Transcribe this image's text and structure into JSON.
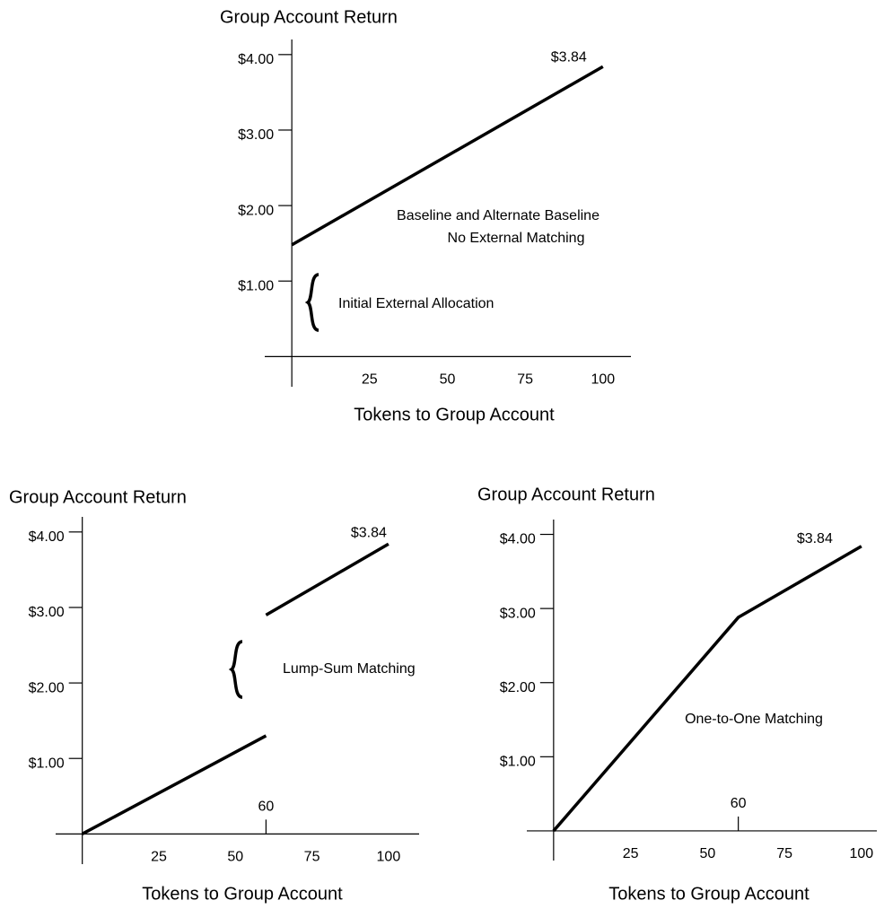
{
  "chart_data": [
    {
      "type": "line",
      "title": "Group Account Return",
      "xlabel": "Tokens to Group Account",
      "x": [
        0,
        100
      ],
      "values": [
        1.48,
        3.84
      ],
      "value_labels": [
        null,
        "$3.84"
      ],
      "color": "#000000",
      "xlim": [
        -8.7,
        109
      ],
      "ylim": [
        -0.4,
        4.2
      ],
      "xticks": [
        25,
        50,
        75,
        100
      ],
      "yticks": [
        {
          "value": 1,
          "label": "$1.00"
        },
        {
          "value": 2,
          "label": "$2.00"
        },
        {
          "value": 3,
          "label": "$3.00"
        },
        {
          "value": 4,
          "label": "$4.00"
        }
      ],
      "annotations": [
        "Baseline and Alternate Baseline",
        "No External Matching",
        "Initial External Allocation"
      ],
      "grid": false
    },
    {
      "type": "line",
      "title": "Group Account Return",
      "xlabel": "Tokens to Group Account",
      "x": [
        0,
        60,
        60,
        60,
        100
      ],
      "values": [
        0,
        1.3,
        null,
        2.9,
        3.84
      ],
      "value_labels": [
        null,
        null,
        null,
        null,
        "$3.84"
      ],
      "color": "#000000",
      "xlim": [
        -8.7,
        110
      ],
      "ylim": [
        -0.4,
        4.2
      ],
      "xticks": [
        25,
        50,
        75,
        100
      ],
      "yticks": [
        {
          "value": 1,
          "label": "$1.00"
        },
        {
          "value": 2,
          "label": "$2.00"
        },
        {
          "value": 3,
          "label": "$3.00"
        },
        {
          "value": 4,
          "label": "$4.00"
        }
      ],
      "marker_x": 60,
      "annotations": [
        "Lump-Sum Matching"
      ],
      "grid": false
    },
    {
      "type": "line",
      "title": "Group Account Return",
      "xlabel": "Tokens to Group Account",
      "x": [
        0,
        60,
        100
      ],
      "values": [
        0,
        2.88,
        3.84
      ],
      "value_labels": [
        null,
        null,
        "$3.84"
      ],
      "color": "#000000",
      "xlim": [
        -8.7,
        105
      ],
      "ylim": [
        -0.4,
        4.2
      ],
      "xticks": [
        25,
        50,
        75,
        100
      ],
      "yticks": [
        {
          "value": 1,
          "label": "$1.00"
        },
        {
          "value": 2,
          "label": "$2.00"
        },
        {
          "value": 3,
          "label": "$3.00"
        },
        {
          "value": 4,
          "label": "$4.00"
        }
      ],
      "marker_x": 60,
      "annotations": [
        "One-to-One Matching"
      ],
      "grid": false
    }
  ]
}
